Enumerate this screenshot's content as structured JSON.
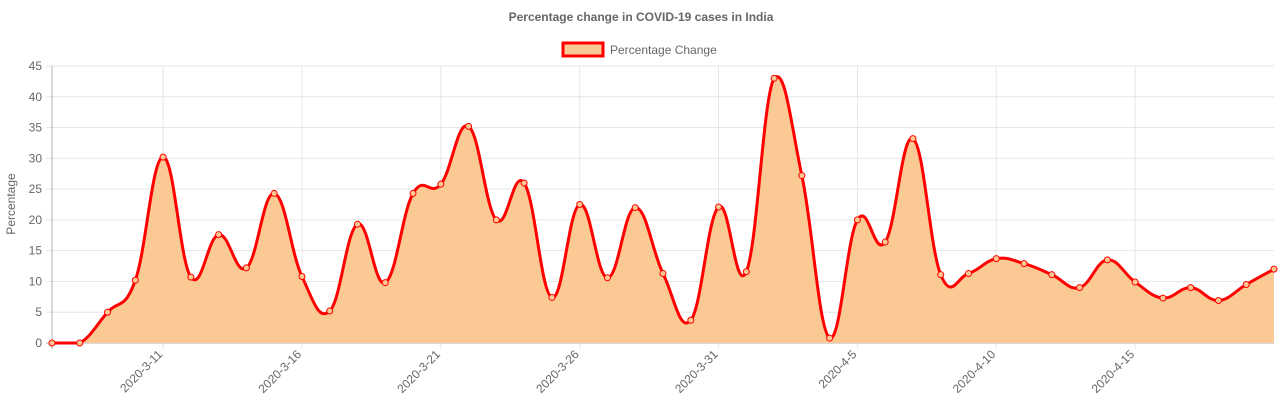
{
  "chart_data": {
    "type": "area",
    "title": "Percentage change in COVID-19 cases in India",
    "ylabel": "Percentage",
    "xlabel": "",
    "ylim": [
      0,
      45
    ],
    "yticks": [
      0,
      5,
      10,
      15,
      20,
      25,
      30,
      35,
      40,
      45
    ],
    "grid": true,
    "legend": "top-center",
    "x": [
      "2020-3-7",
      "2020-3-8",
      "2020-3-9",
      "2020-3-10",
      "2020-3-11",
      "2020-3-12",
      "2020-3-13",
      "2020-3-14",
      "2020-3-15",
      "2020-3-16",
      "2020-3-17",
      "2020-3-18",
      "2020-3-19",
      "2020-3-20",
      "2020-3-21",
      "2020-3-22",
      "2020-3-23",
      "2020-3-24",
      "2020-3-25",
      "2020-3-26",
      "2020-3-27",
      "2020-3-28",
      "2020-3-29",
      "2020-3-30",
      "2020-3-31",
      "2020-4-1",
      "2020-4-2",
      "2020-4-3",
      "2020-4-4",
      "2020-4-5",
      "2020-4-6",
      "2020-4-7",
      "2020-4-8",
      "2020-4-9",
      "2020-4-10",
      "2020-4-11",
      "2020-4-12",
      "2020-4-13",
      "2020-4-14",
      "2020-4-15",
      "2020-4-16",
      "2020-4-17",
      "2020-4-18",
      "2020-4-19",
      "2020-4-20"
    ],
    "xtick_labels": [
      "2020-3-11",
      "2020-3-16",
      "2020-3-21",
      "2020-3-26",
      "2020-3-31",
      "2020-4-5",
      "2020-4-10",
      "2020-4-15"
    ],
    "series": [
      {
        "name": "Percentage Change",
        "values": [
          0,
          0,
          5,
          10.2,
          30.2,
          10.7,
          17.6,
          12.2,
          24.3,
          10.8,
          5.2,
          19.3,
          9.8,
          24.3,
          25.8,
          35.2,
          20,
          26,
          7.4,
          22.5,
          10.6,
          22,
          11.3,
          3.7,
          22.1,
          11.6,
          43,
          27.2,
          0.8,
          20,
          16.4,
          33.2,
          11.1,
          11.3,
          13.7,
          12.9,
          11.1,
          9,
          13.5,
          9.9,
          7.3,
          9,
          6.9,
          9.5,
          12
        ],
        "line_color": "#ff0000",
        "fill_color": "#fbc993"
      }
    ]
  }
}
